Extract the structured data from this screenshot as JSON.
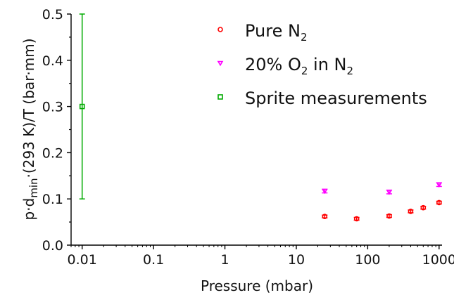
{
  "chart_data": {
    "type": "scatter",
    "x_scale": "log",
    "xlabel": "Pressure (mbar)",
    "ylabel": {
      "base": "p·d",
      "sub": "min",
      "rest": "·(293 K)/T  (bar·mm)"
    },
    "xlim": [
      0.007,
      1100
    ],
    "ylim": [
      0,
      0.5
    ],
    "x_ticks": [
      0.01,
      0.1,
      1,
      10,
      100,
      1000
    ],
    "x_tick_labels": [
      "0.01",
      "0.1",
      "1",
      "10",
      "100",
      "1000"
    ],
    "y_ticks": [
      0,
      0.1,
      0.2,
      0.3,
      0.4,
      0.5
    ],
    "y_tick_labels": [
      "0.0",
      "0.1",
      "0.2",
      "0.3",
      "0.4",
      "0.5"
    ],
    "legend_position": "top-right",
    "series": [
      {
        "id": "pure",
        "name_parts": [
          "Pure N",
          "2",
          ""
        ],
        "marker": "circle",
        "color": "#ff0000",
        "points": [
          {
            "x": 25,
            "y": 0.062,
            "err": 0.003
          },
          {
            "x": 70,
            "y": 0.057,
            "err": 0.003
          },
          {
            "x": 200,
            "y": 0.063,
            "err": 0.003
          },
          {
            "x": 400,
            "y": 0.073,
            "err": 0.003
          },
          {
            "x": 600,
            "y": 0.081,
            "err": 0.003
          },
          {
            "x": 1000,
            "y": 0.092,
            "err": 0.003
          }
        ]
      },
      {
        "id": "o2",
        "name_parts": [
          "20% O",
          "2",
          " in N",
          "2",
          ""
        ],
        "marker": "triangle-down",
        "color": "#ff00ff",
        "points": [
          {
            "x": 25,
            "y": 0.117,
            "err": 0.004
          },
          {
            "x": 200,
            "y": 0.115,
            "err": 0.004
          },
          {
            "x": 1000,
            "y": 0.131,
            "err": 0.004
          }
        ]
      },
      {
        "id": "sprite",
        "name_parts": [
          "Sprite measurements"
        ],
        "marker": "square",
        "color": "#00aa00",
        "points": [
          {
            "x": 0.01,
            "y": 0.3,
            "err_low": 0.2,
            "err_high": 0.2
          }
        ]
      }
    ]
  }
}
